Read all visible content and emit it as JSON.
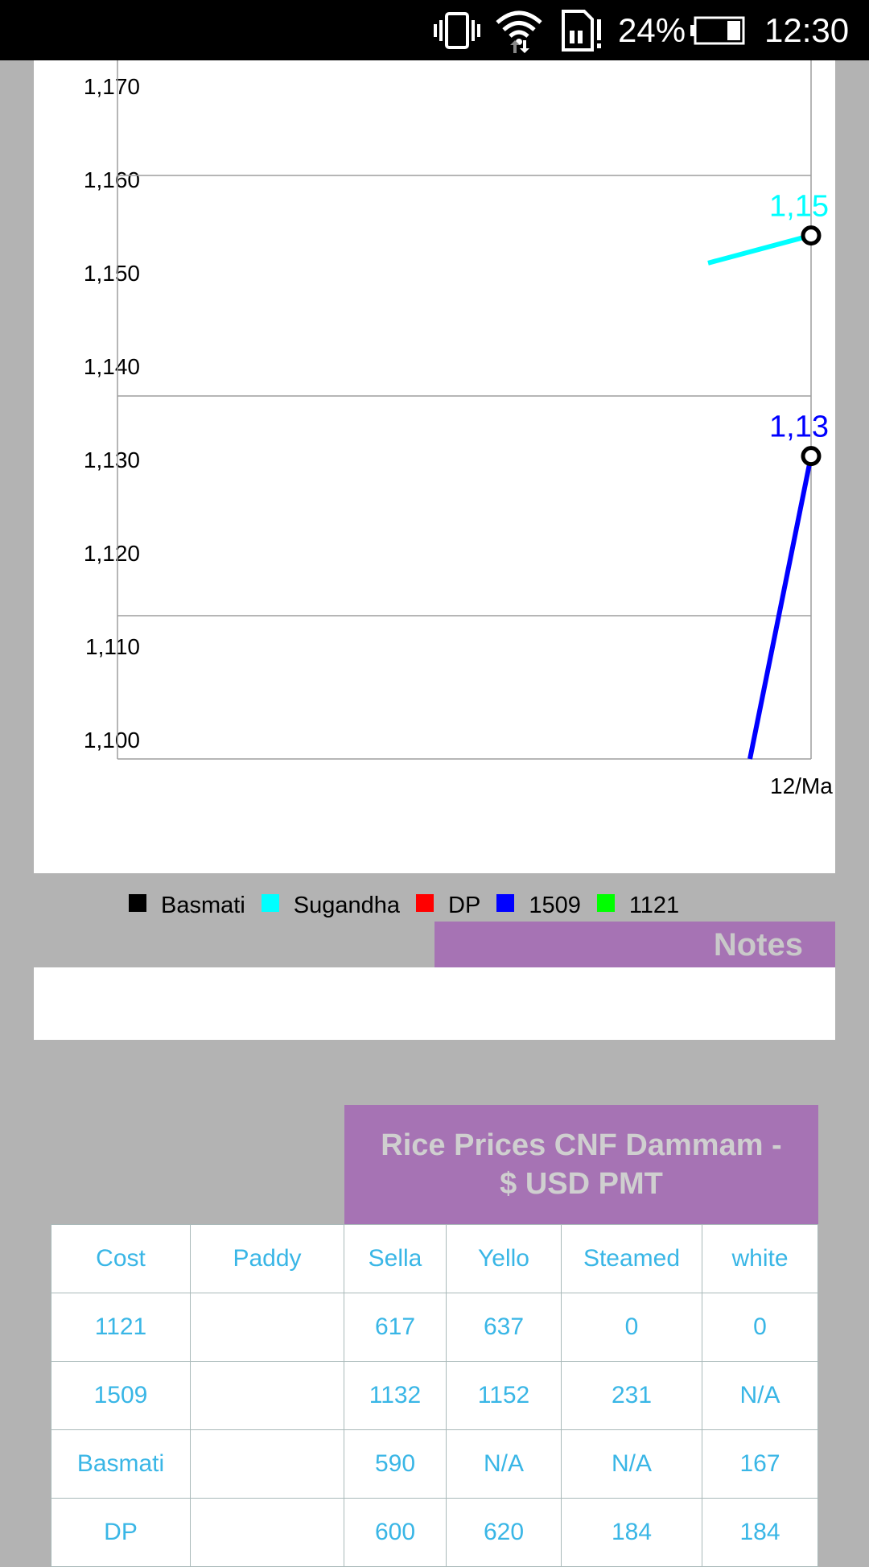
{
  "status_bar": {
    "battery": "24%",
    "time": "12:30",
    "icons": [
      "vibrate-icon",
      "wifi-icon",
      "sim-alert-icon",
      "battery-icon"
    ]
  },
  "chart_data": {
    "type": "line",
    "y_ticks": [
      "1,170",
      "1,160",
      "1,150",
      "1,140",
      "1,130",
      "1,120",
      "1,110",
      "1,100"
    ],
    "ylim": [
      1097,
      1173
    ],
    "x_label_visible": "12/Ma",
    "series": [
      {
        "name": "Basmati",
        "color": "#000000",
        "values": []
      },
      {
        "name": "Sugandha",
        "color": "#00ffff",
        "values": [
          1152,
          1155
        ],
        "point_label": "1,15"
      },
      {
        "name": "DP",
        "color": "#ff0000",
        "values": []
      },
      {
        "name": "1509",
        "color": "#0000ff",
        "values": [
          1097,
          1131
        ],
        "point_label": "1,13"
      },
      {
        "name": "1121",
        "color": "#00ff00",
        "values": []
      }
    ]
  },
  "notes": {
    "title": "Notes"
  },
  "prices": {
    "title": "Rice Prices CNF Dammam - $ USD PMT",
    "headers": [
      "Cost",
      "Paddy",
      "Sella",
      "Yello",
      "Steamed",
      "white"
    ],
    "rows": [
      [
        "1121",
        "",
        "617",
        "637",
        "0",
        "0"
      ],
      [
        "1509",
        "",
        "1132",
        "1152",
        "231",
        "N/A"
      ],
      [
        "Basmati",
        "",
        "590",
        "N/A",
        "N/A",
        "167"
      ],
      [
        "DP",
        "",
        "600",
        "620",
        "184",
        "184"
      ]
    ]
  },
  "colors": {
    "accent": "#a673b4",
    "table_text": "#39b6e6"
  }
}
